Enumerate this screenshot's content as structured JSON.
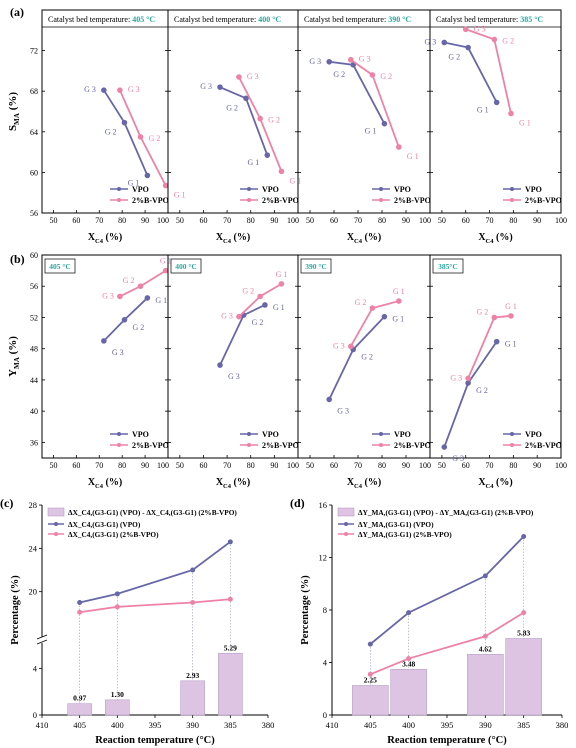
{
  "colors": {
    "vpo": "#6666a8",
    "bvpo": "#ee82a5",
    "teal": "#2aa6a0",
    "axis": "#000000",
    "bar_fill": "#dcc4e2",
    "bar_stroke": "#b9a0c8"
  },
  "chart_data": [
    {
      "id": "a405",
      "type": "line",
      "row": "a",
      "panel_label": "(a)",
      "title": "Catalyst bed temperature:",
      "title_value": "405 °C",
      "ylabel": "S_MA (%)",
      "xlabel": "X_C4 (%)",
      "xlim": [
        45,
        100
      ],
      "ylim": [
        56,
        76
      ],
      "xticks": [
        50,
        60,
        70,
        80,
        90,
        100
      ],
      "yticks": [
        56,
        60,
        64,
        68,
        72
      ],
      "series": [
        {
          "name": "VPO",
          "x": [
            91,
            81,
            72
          ],
          "y": [
            59.7,
            64.9,
            68.1
          ],
          "point_labels": [
            "G 1",
            "G 2",
            "G 3"
          ]
        },
        {
          "name": "2%B-VPO",
          "x": [
            99,
            88,
            79
          ],
          "y": [
            58.7,
            63.5,
            68.1
          ],
          "point_labels": [
            "G 1",
            "G 2",
            "G 3"
          ]
        }
      ],
      "legend": [
        "VPO",
        "2%B-VPO"
      ]
    },
    {
      "id": "a400",
      "type": "line",
      "row": "a",
      "title": "Catalyst bed temperature:",
      "title_value": "400 °C",
      "xlabel": "X_C4 (%)",
      "xlim": [
        45,
        100
      ],
      "ylim": [
        56,
        76
      ],
      "xticks": [
        50,
        60,
        70,
        80,
        90,
        100
      ],
      "series": [
        {
          "name": "VPO",
          "x": [
            87,
            78,
            67
          ],
          "y": [
            61.7,
            67.3,
            68.4
          ],
          "point_labels": [
            "G 1",
            "G 2",
            "G 3"
          ]
        },
        {
          "name": "2%B-VPO",
          "x": [
            93,
            84,
            75
          ],
          "y": [
            60.1,
            65.3,
            69.4
          ],
          "point_labels": [
            "G 1",
            "G 2",
            "G 3"
          ]
        }
      ],
      "legend": [
        "VPO",
        "2%B-VPO"
      ]
    },
    {
      "id": "a390",
      "type": "line",
      "row": "a",
      "title": "Catalyst bed temperature:",
      "title_value": "390 °C",
      "xlabel": "X_C4 (%)",
      "xlim": [
        45,
        100
      ],
      "ylim": [
        56,
        76
      ],
      "xticks": [
        50,
        60,
        70,
        80,
        90,
        100
      ],
      "series": [
        {
          "name": "VPO",
          "x": [
            81,
            68,
            58
          ],
          "y": [
            64.8,
            70.6,
            70.9
          ],
          "point_labels": [
            "G 1",
            "G 2",
            "G 3"
          ]
        },
        {
          "name": "2%B-VPO",
          "x": [
            87,
            76,
            67
          ],
          "y": [
            62.5,
            69.6,
            71.1
          ],
          "point_labels": [
            "G 1",
            "G 2",
            "G 3"
          ]
        }
      ],
      "legend": [
        "VPO",
        "2%B-VPO"
      ]
    },
    {
      "id": "a385",
      "type": "line",
      "row": "a",
      "title": "Catalyst bed temperature:",
      "title_value": "385 °C",
      "xlabel": "X_C4 (%)",
      "xlim": [
        45,
        100
      ],
      "ylim": [
        56,
        76
      ],
      "xticks": [
        50,
        60,
        70,
        80,
        90,
        100
      ],
      "series": [
        {
          "name": "VPO",
          "x": [
            73,
            61,
            51
          ],
          "y": [
            66.9,
            72.3,
            72.8
          ],
          "point_labels": [
            "G 1",
            "G 2",
            "G 3"
          ]
        },
        {
          "name": "2%B-VPO",
          "x": [
            79,
            72,
            60
          ],
          "y": [
            65.8,
            73.1,
            74.1
          ],
          "point_labels": [
            "G 1",
            "G 2",
            "G 3"
          ]
        }
      ],
      "legend": [
        "VPO",
        "2%B-VPO"
      ]
    },
    {
      "id": "b405",
      "type": "line",
      "row": "b",
      "panel_label": "(b)",
      "title_value": "405 °C",
      "ylabel": "Y_MA (%)",
      "xlabel": "X_C4 (%)",
      "xlim": [
        45,
        100
      ],
      "ylim": [
        34,
        60
      ],
      "xticks": [
        50,
        60,
        70,
        80,
        90,
        100
      ],
      "yticks": [
        36,
        40,
        44,
        48,
        52,
        56,
        60
      ],
      "series": [
        {
          "name": "VPO",
          "x": [
            72,
            81,
            91
          ],
          "y": [
            49.0,
            51.7,
            54.5
          ],
          "point_labels": [
            "G 3",
            "G 2",
            "G 1"
          ]
        },
        {
          "name": "2%B-VPO",
          "x": [
            79,
            88,
            99
          ],
          "y": [
            54.7,
            56.0,
            58.0
          ],
          "point_labels": [
            "G 3",
            "G 2",
            "G 1"
          ]
        }
      ],
      "legend": [
        "VPO",
        "2%B-VPO"
      ]
    },
    {
      "id": "b400",
      "type": "line",
      "row": "b",
      "title_value": "400 °C",
      "xlabel": "X_C4 (%)",
      "xlim": [
        45,
        100
      ],
      "ylim": [
        34,
        60
      ],
      "xticks": [
        50,
        60,
        70,
        80,
        90,
        100
      ],
      "series": [
        {
          "name": "VPO",
          "x": [
            67,
            77,
            86
          ],
          "y": [
            45.9,
            52.3,
            53.6
          ],
          "point_labels": [
            "G 3",
            "G 2",
            "G 1"
          ]
        },
        {
          "name": "2%B-VPO",
          "x": [
            75,
            84,
            93
          ],
          "y": [
            52.1,
            54.7,
            56.3
          ],
          "point_labels": [
            "G 3",
            "G 2",
            "G 1"
          ]
        }
      ],
      "legend": [
        "VPO",
        "2%B-VPO"
      ]
    },
    {
      "id": "b390",
      "type": "line",
      "row": "b",
      "title_value": "390 °C",
      "xlabel": "X_C4 (%)",
      "xlim": [
        45,
        100
      ],
      "ylim": [
        34,
        60
      ],
      "xticks": [
        50,
        60,
        70,
        80,
        90,
        100
      ],
      "series": [
        {
          "name": "VPO",
          "x": [
            58,
            68,
            81
          ],
          "y": [
            41.5,
            47.9,
            52.1
          ],
          "point_labels": [
            "G 3",
            "G 2",
            "G 1"
          ]
        },
        {
          "name": "2%B-VPO",
          "x": [
            67,
            76,
            87
          ],
          "y": [
            48.3,
            53.2,
            54.1
          ],
          "point_labels": [
            "G 3",
            "G 2",
            "G 1"
          ]
        }
      ],
      "legend": [
        "VPO",
        "2%B-VPO"
      ]
    },
    {
      "id": "b385",
      "type": "line",
      "row": "b",
      "title_value": "385°C",
      "xlabel": "X_C4 (%)",
      "xlim": [
        45,
        100
      ],
      "ylim": [
        34,
        60
      ],
      "xticks": [
        50,
        60,
        70,
        80,
        90,
        100
      ],
      "series": [
        {
          "name": "VPO",
          "x": [
            51,
            61,
            73
          ],
          "y": [
            35.4,
            43.6,
            48.9
          ],
          "point_labels": [
            "G 3",
            "G 2",
            "G 1"
          ]
        },
        {
          "name": "2%B-VPO",
          "x": [
            61,
            72,
            79
          ],
          "y": [
            44.2,
            52.0,
            52.2
          ],
          "point_labels": [
            "G 3",
            "G 2",
            "G 1"
          ]
        }
      ],
      "legend": [
        "VPO",
        "2%B-VPO"
      ]
    },
    {
      "id": "c",
      "type": "bar+line",
      "panel_label": "(c)",
      "xlabel": "Reaction temperature (°C)",
      "ylabel": "Percentage (%)",
      "categories": [
        "405",
        "400",
        "390",
        "385"
      ],
      "xticks": [
        "410",
        "405",
        "400",
        "395",
        "390",
        "385",
        "380"
      ],
      "yticks_lower": [
        "0",
        "4"
      ],
      "yticks_upper": [
        "20",
        "24",
        "28"
      ],
      "y_break": true,
      "bars": {
        "name": "ΔX_C4,(G3-G1) (VPO) - ΔX_C4,(G3-G1) (2%B-VPO)",
        "values": [
          0.97,
          1.3,
          2.93,
          5.29
        ]
      },
      "series": [
        {
          "name": "ΔX_C4,(G3-G1) (VPO)",
          "values": [
            19.0,
            19.8,
            22.0,
            24.6
          ]
        },
        {
          "name": "ΔX_C4,(G3-G1) (2%B-VPO)",
          "values": [
            18.1,
            18.6,
            19.0,
            19.3
          ]
        }
      ]
    },
    {
      "id": "d",
      "type": "bar+line",
      "panel_label": "(d)",
      "xlabel": "Reaction temperature (°C)",
      "ylabel": "Percentage (%)",
      "categories": [
        "405",
        "400",
        "390",
        "385"
      ],
      "xticks": [
        "410",
        "405",
        "400",
        "395",
        "390",
        "385",
        "380"
      ],
      "yticks": [
        "0",
        "4",
        "8",
        "12",
        "16"
      ],
      "ylim": [
        0,
        16
      ],
      "bars": {
        "name": "ΔY_MA,(G3-G1) (VPO) - ΔY_MA,(G3-G1) (2%B-VPO)",
        "values": [
          2.25,
          3.48,
          4.62,
          5.83
        ]
      },
      "series": [
        {
          "name": "ΔY_MA,(G3-G1) (VPO)",
          "values": [
            5.4,
            7.8,
            10.6,
            13.6
          ]
        },
        {
          "name": "ΔY_MA,(G3-G1) (2%B-VPO)",
          "values": [
            3.1,
            4.3,
            6.0,
            7.8
          ]
        }
      ]
    }
  ]
}
